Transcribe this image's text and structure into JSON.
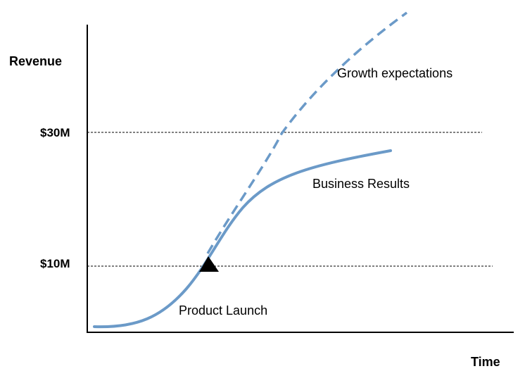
{
  "diagram": {
    "y_axis_label": "Revenue",
    "x_axis_label": "Time",
    "levels": [
      {
        "label": "$30M"
      },
      {
        "label": "$10M"
      }
    ],
    "annotations": {
      "expectations": "Growth expectations",
      "results": "Business Results",
      "launch": "Product Launch"
    },
    "colors": {
      "curve": "#6b9ac8",
      "axis": "#000000",
      "reference_line": "#000000",
      "marker": "#000000"
    },
    "icons": {
      "launch_marker": "triangle-marker-icon"
    }
  }
}
